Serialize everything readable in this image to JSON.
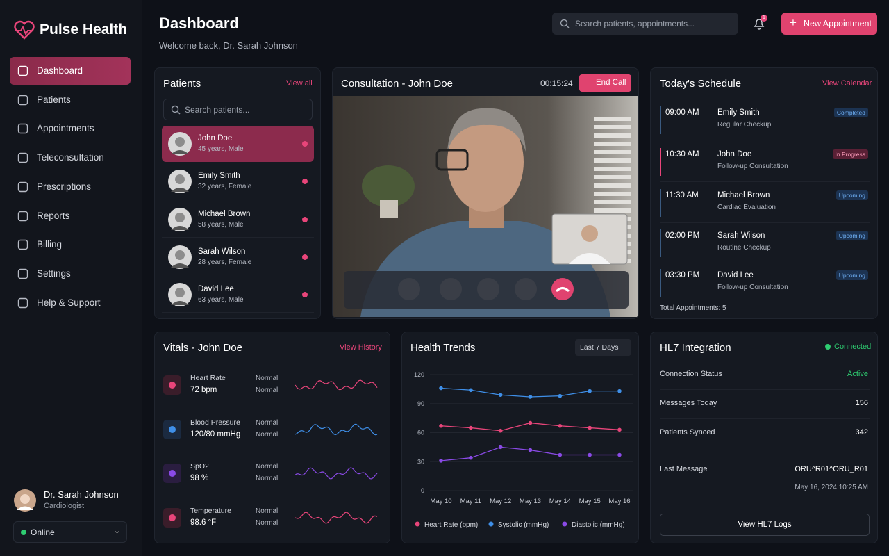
{
  "brand": "Pulse Health",
  "nav": [
    "Dashboard",
    "Patients",
    "Appointments",
    "Teleconsultation",
    "Prescriptions",
    "Reports",
    "Billing",
    "Settings",
    "Help & Support"
  ],
  "user": {
    "name": "Dr. Sarah Johnson",
    "role": "Cardiologist",
    "status": "Online"
  },
  "header": {
    "title": "Dashboard",
    "subtitle": "Welcome back, Dr. Sarah Johnson",
    "search_placeholder": "Search patients, appointments...",
    "notifications": "1",
    "new_button": "New Appointment"
  },
  "patients": {
    "title": "Patients",
    "link": "View all",
    "search_placeholder": "Search patients...",
    "items": [
      {
        "name": "John Doe",
        "detail": "45 years, Male"
      },
      {
        "name": "Emily Smith",
        "detail": "32 years, Female"
      },
      {
        "name": "Michael Brown",
        "detail": "58 years, Male"
      },
      {
        "name": "Sarah Wilson",
        "detail": "28 years, Female"
      },
      {
        "name": "David Lee",
        "detail": "63 years, Male"
      }
    ]
  },
  "consultation": {
    "title": "Consultation - John Doe",
    "timer": "00:15:24",
    "end_call": "End Call"
  },
  "schedule": {
    "title": "Today's Schedule",
    "link": "View Calendar",
    "items": [
      {
        "time": "09:00 AM",
        "name": "Emily Smith",
        "type": "Regular Checkup",
        "status": "Completed"
      },
      {
        "time": "10:30 AM",
        "name": "John Doe",
        "type": "Follow-up Consultation",
        "status": "In Progress"
      },
      {
        "time": "11:30 AM",
        "name": "Michael Brown",
        "type": "Cardiac Evaluation",
        "status": "Upcoming"
      },
      {
        "time": "02:00 PM",
        "name": "Sarah Wilson",
        "type": "Routine Checkup",
        "status": "Upcoming"
      },
      {
        "time": "03:30 PM",
        "name": "David Lee",
        "type": "Follow-up Consultation",
        "status": "Upcoming"
      }
    ],
    "total": "Total Appointments: 5"
  },
  "vitals": {
    "title": "Vitals - John Doe",
    "link": "View History",
    "items": [
      {
        "label": "Heart Rate",
        "value": "72 bpm",
        "status": [
          "Normal",
          "Normal"
        ]
      },
      {
        "label": "Blood Pressure",
        "value": "120/80 mmHg",
        "status": [
          "Normal",
          "Normal"
        ]
      },
      {
        "label": "SpO2",
        "value": "98 %",
        "status": [
          "Normal",
          "Normal"
        ]
      },
      {
        "label": "Temperature",
        "value": "98.6 °F",
        "status": [
          "Normal",
          "Normal"
        ]
      }
    ]
  },
  "hl7": {
    "title": "HL7 Integration",
    "status": "Connected",
    "rows": [
      {
        "label": "Connection Status",
        "value": "Active"
      },
      {
        "label": "Messages Today",
        "value": "156"
      },
      {
        "label": "Patients Synced",
        "value": "342"
      },
      {
        "label": "Last Message",
        "value": "ORU^R01^ORU_R01"
      }
    ],
    "timestamp": "May 16, 2024 10:25 AM",
    "button": "View HL7 Logs"
  },
  "chart_data": {
    "type": "line",
    "title": "Health Trends",
    "range_selector": "Last 7 Days",
    "categories": [
      "May 10",
      "May 11",
      "May 12",
      "May 13",
      "May 14",
      "May 15",
      "May 16"
    ],
    "series": [
      {
        "name": "Heart Rate (bpm)",
        "color": "#e8457a",
        "values": [
          67,
          65,
          62,
          70,
          67,
          65,
          63
        ]
      },
      {
        "name": "Systolic (mmHg)",
        "color": "#3f8fe8",
        "values": [
          106,
          104,
          99,
          97,
          98,
          103,
          103
        ]
      },
      {
        "name": "Diastolic (mmHg)",
        "color": "#8a4ae6",
        "values": [
          31,
          34,
          45,
          42,
          37,
          37,
          37
        ]
      }
    ],
    "ylim": [
      0,
      120
    ],
    "yticks": [
      0,
      30,
      60,
      90,
      120
    ],
    "grid": true
  }
}
